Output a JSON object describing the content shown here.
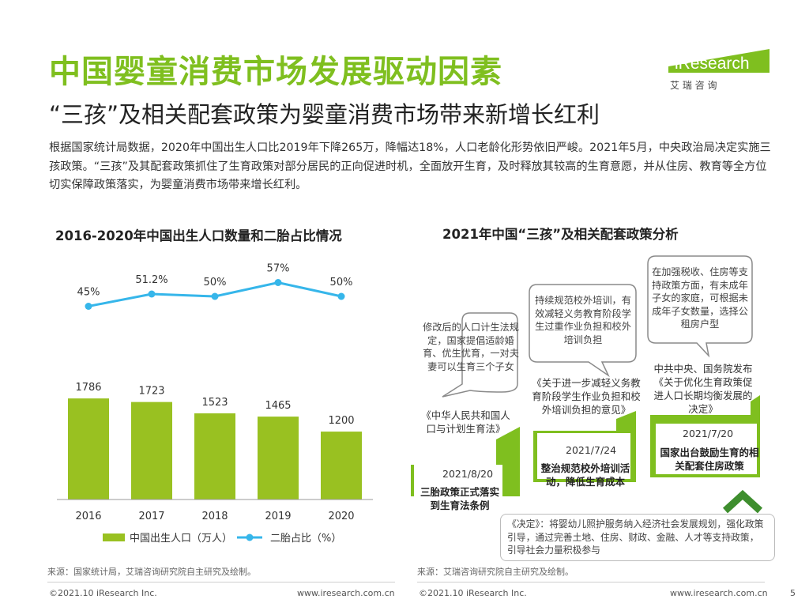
{
  "header": {
    "title": "中国婴童消费市场发展驱动因素",
    "subtitle": "“三孩”及相关配套政策为婴童消费市场带来新增长红利",
    "intro": "根据国家统计局数据，2020年中国出生人口比2019年下降265万，降幅达18%，人口老龄化形势依旧严峻。2021年5月，中央政治局决定实施三孩政策。“三孩”及其配套政策抓住了生育政策对部分居民的正向促进时机，全面放开生育，及时释放其较高的生育意愿，并从住房、教育等全方位切实保障政策落实，为婴童消费市场带来增长红利。"
  },
  "logo": {
    "text": "iResearch",
    "sub": "艾 瑞 咨 询",
    "color": "#7fbf1f"
  },
  "colors": {
    "accent": "#7fbf1f",
    "bar": "#99c121",
    "line": "#36b6ea",
    "dark_green": "#3e8e2e"
  },
  "chart_data": {
    "type": "bar",
    "title": "2016-2020年中国出生人口数量和二胎占比情况",
    "categories": [
      "2016",
      "2017",
      "2018",
      "2019",
      "2020"
    ],
    "series": [
      {
        "name": "中国出生人口（万人）",
        "type": "bar",
        "values": [
          1786,
          1723,
          1523,
          1465,
          1200
        ]
      },
      {
        "name": "二胎占比（%）",
        "type": "line",
        "values": [
          45,
          51.2,
          50,
          57,
          50
        ],
        "labels": [
          "45%",
          "51.2%",
          "50%",
          "57%",
          "50%"
        ]
      }
    ],
    "ylim": [
      0,
      2500
    ],
    "legend_position": "bottom"
  },
  "left_source": "来源：国家统计局，艾瑞咨询研究院自主研究及绘制。",
  "policy": {
    "title": "2021年中国“三孩”及相关配套政策分析",
    "bubbles": [
      "修改后的人口计生法规定，国家提倡适龄婚育、优生优育，一对夫妻可以生育三个子女",
      "持续规范校外培训，有效减轻义务教育阶段学生过重作业负担和校外培训负担",
      "在加强税收、住房等支持政策方面，有未成年子女的家庭，可根据未成年子女数量，选择公租房户型"
    ],
    "steps": [
      {
        "doc": "《中华人民共和国人口与计划生育法》",
        "date": "2021/8/20",
        "event": "三胎政策正式落实到生育法条例"
      },
      {
        "doc": "《关于进一步减轻义务教育阶段学生作业负担和校外培训负担的意见》",
        "date": "2021/7/24",
        "event": "整治规范校外培训活动，降低生育成本"
      },
      {
        "doc": "中共中央、国务院发布《关于优化生育政策促进人口长期均衡发展的决定》",
        "date": "2021/7/20",
        "event": "国家出台鼓励生育的相关配套住房政策"
      }
    ],
    "note": "《决定》：将婴幼儿照护服务纳入经济社会发展规划，强化政策引导，通过完善土地、住房、财政、金融、人才等支持政策，引导社会力量积极参与"
  },
  "right_source": "来源：艾瑞咨询研究院自主研究及绘制。",
  "footer": {
    "copyright_left": "©2021.10 iResearch Inc.",
    "url_left": "www.iresearch.com.cn",
    "copyright_right": "©2021.10 iResearch Inc.",
    "url_right": "www.iresearch.com.cn",
    "page_number": "5"
  }
}
